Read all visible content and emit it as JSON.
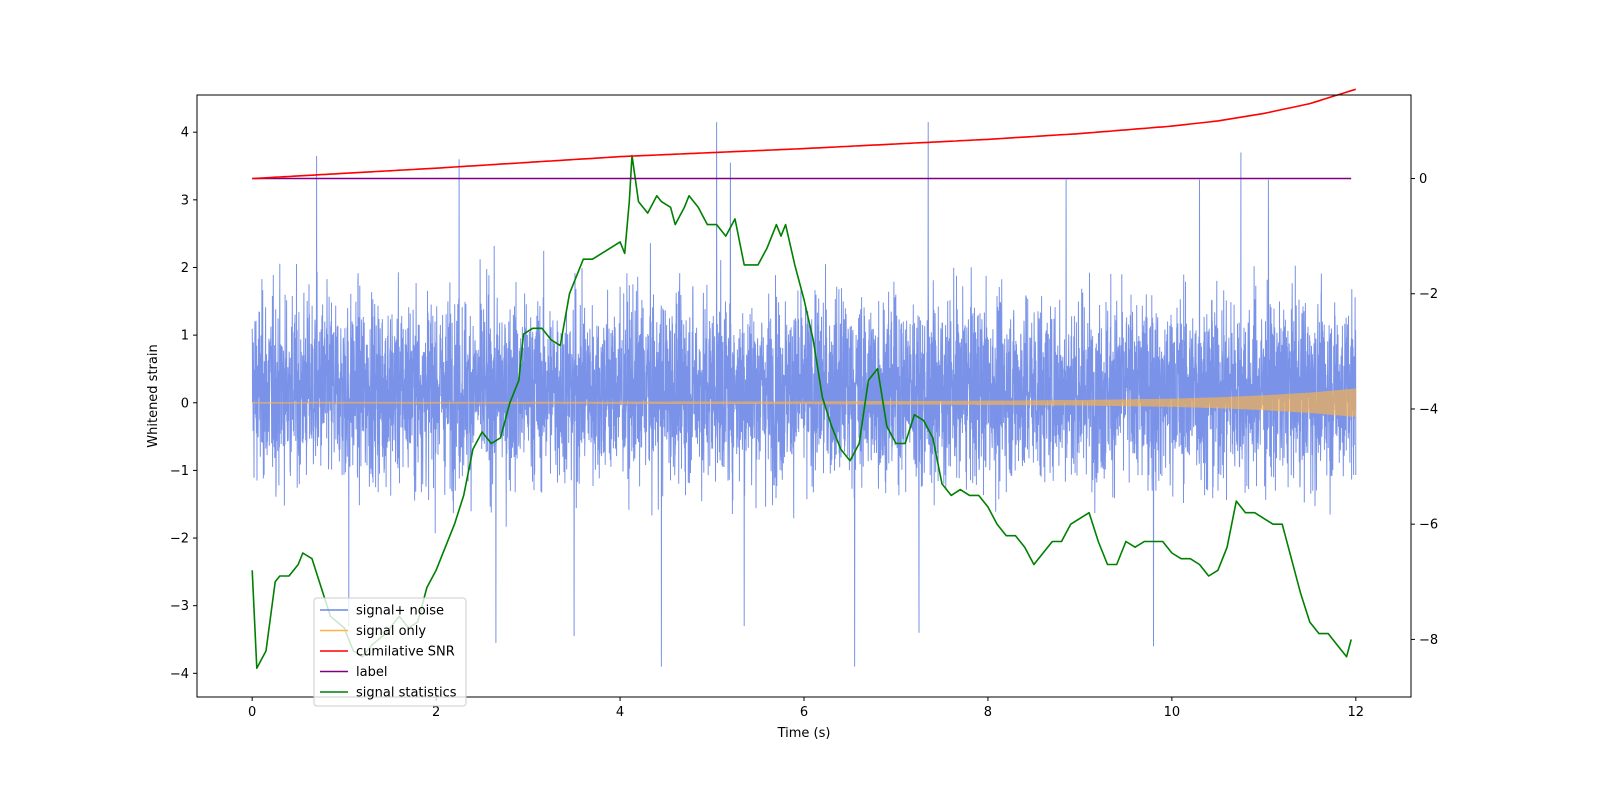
{
  "chart_data": {
    "type": "line",
    "title": "",
    "xlabel": "Time (s)",
    "ylabel": "Whitened strain",
    "xlim": [
      -0.6,
      12.6
    ],
    "ylim": [
      -4.35,
      4.55
    ],
    "y2lim": [
      -9.0,
      1.45
    ],
    "xticks": [
      0,
      2,
      4,
      6,
      8,
      10,
      12
    ],
    "yticks": [
      -4,
      -3,
      -2,
      -1,
      0,
      1,
      2,
      3,
      4
    ],
    "y2ticks": [
      -8,
      -6,
      -4,
      -2,
      0
    ],
    "grid": false,
    "legend_position": "lower-left",
    "series": [
      {
        "name": "signal+ noise",
        "axis": "left",
        "color": "#6b87e6",
        "style": "dense-noise",
        "x_range": [
          0,
          12
        ],
        "amplitude_range": [
          -3.9,
          4.2
        ],
        "typical_range": [
          -2.2,
          2.5
        ],
        "spikes": [
          {
            "x": 0.7,
            "y": 3.65
          },
          {
            "x": 2.25,
            "y": 3.6
          },
          {
            "x": 5.05,
            "y": 4.15
          },
          {
            "x": 5.2,
            "y": 3.55
          },
          {
            "x": 7.35,
            "y": 4.15
          },
          {
            "x": 8.85,
            "y": 3.3
          },
          {
            "x": 10.3,
            "y": 3.3
          },
          {
            "x": 10.75,
            "y": 3.7
          },
          {
            "x": 11.05,
            "y": 3.3
          },
          {
            "x": 4.45,
            "y": -3.9
          },
          {
            "x": 6.55,
            "y": -3.9
          },
          {
            "x": 3.5,
            "y": -3.45
          },
          {
            "x": 1.05,
            "y": -3.3
          },
          {
            "x": 2.65,
            "y": -3.55
          },
          {
            "x": 9.8,
            "y": -3.6
          },
          {
            "x": 7.25,
            "y": -3.4
          },
          {
            "x": 5.35,
            "y": -3.3
          }
        ]
      },
      {
        "name": "signal only",
        "axis": "left",
        "color": "#ffb347",
        "style": "chirp",
        "x_range": [
          0,
          12
        ],
        "envelope_x": [
          0,
          2,
          4,
          6,
          8,
          9,
          10,
          10.5,
          11,
          11.5,
          12
        ],
        "envelope": [
          0.01,
          0.012,
          0.015,
          0.02,
          0.03,
          0.04,
          0.06,
          0.08,
          0.11,
          0.15,
          0.21
        ]
      },
      {
        "name": "cumilative SNR",
        "axis": "right",
        "color": "#ff0000",
        "x": [
          0,
          2,
          4,
          6,
          7,
          8,
          9,
          10,
          10.5,
          11,
          11.5,
          12
        ],
        "y": [
          0.0,
          0.18,
          0.38,
          0.52,
          0.6,
          0.68,
          0.78,
          0.91,
          1.0,
          1.13,
          1.3,
          1.55
        ]
      },
      {
        "name": "label",
        "axis": "right",
        "color": "#800080",
        "x": [
          0,
          11.95
        ],
        "y": [
          0,
          0
        ]
      },
      {
        "name": "signal statistics",
        "axis": "right",
        "color": "#008000",
        "x": [
          0,
          0.05,
          0.15,
          0.25,
          0.3,
          0.4,
          0.5,
          0.55,
          0.65,
          0.75,
          0.85,
          1.0,
          1.1,
          1.2,
          1.3,
          1.45,
          1.6,
          1.7,
          1.8,
          1.9,
          2.0,
          2.1,
          2.2,
          2.3,
          2.4,
          2.5,
          2.6,
          2.7,
          2.8,
          2.9,
          2.95,
          3.05,
          3.15,
          3.25,
          3.35,
          3.45,
          3.6,
          3.7,
          3.8,
          3.9,
          4.0,
          4.05,
          4.1,
          4.13,
          4.2,
          4.3,
          4.4,
          4.45,
          4.55,
          4.6,
          4.7,
          4.75,
          4.85,
          4.95,
          5.05,
          5.15,
          5.25,
          5.35,
          5.5,
          5.6,
          5.7,
          5.75,
          5.8,
          5.9,
          6.0,
          6.1,
          6.2,
          6.3,
          6.4,
          6.5,
          6.6,
          6.7,
          6.8,
          6.9,
          7.0,
          7.1,
          7.2,
          7.3,
          7.4,
          7.5,
          7.6,
          7.7,
          7.8,
          7.9,
          8.0,
          8.1,
          8.2,
          8.3,
          8.4,
          8.5,
          8.6,
          8.7,
          8.8,
          8.9,
          9.0,
          9.1,
          9.2,
          9.3,
          9.4,
          9.5,
          9.6,
          9.7,
          9.8,
          9.9,
          10.0,
          10.1,
          10.2,
          10.3,
          10.4,
          10.5,
          10.6,
          10.7,
          10.8,
          10.9,
          11.0,
          11.1,
          11.2,
          11.3,
          11.4,
          11.5,
          11.6,
          11.7,
          11.8,
          11.9,
          11.95
        ],
        "y": [
          -6.8,
          -8.5,
          -8.2,
          -7.0,
          -6.9,
          -6.9,
          -6.7,
          -6.5,
          -6.6,
          -7.1,
          -7.6,
          -7.8,
          -8.2,
          -8.3,
          -8.1,
          -7.9,
          -7.6,
          -7.8,
          -7.7,
          -7.1,
          -6.8,
          -6.4,
          -6.0,
          -5.5,
          -4.7,
          -4.4,
          -4.6,
          -4.5,
          -3.9,
          -3.5,
          -2.7,
          -2.6,
          -2.6,
          -2.8,
          -2.9,
          -2.0,
          -1.4,
          -1.4,
          -1.3,
          -1.2,
          -1.1,
          -1.3,
          -0.4,
          0.4,
          -0.4,
          -0.6,
          -0.3,
          -0.4,
          -0.5,
          -0.8,
          -0.5,
          -0.3,
          -0.5,
          -0.8,
          -0.8,
          -1.0,
          -0.7,
          -1.5,
          -1.5,
          -1.2,
          -0.8,
          -1.0,
          -0.8,
          -1.5,
          -2.1,
          -2.8,
          -3.8,
          -4.3,
          -4.7,
          -4.9,
          -4.6,
          -3.5,
          -3.3,
          -4.3,
          -4.6,
          -4.6,
          -4.1,
          -4.2,
          -4.5,
          -5.3,
          -5.5,
          -5.4,
          -5.5,
          -5.5,
          -5.7,
          -6.0,
          -6.2,
          -6.2,
          -6.4,
          -6.7,
          -6.5,
          -6.3,
          -6.3,
          -6.0,
          -5.9,
          -5.8,
          -6.3,
          -6.7,
          -6.7,
          -6.3,
          -6.4,
          -6.3,
          -6.3,
          -6.3,
          -6.5,
          -6.6,
          -6.6,
          -6.7,
          -6.9,
          -6.8,
          -6.4,
          -5.6,
          -5.8,
          -5.8,
          -5.9,
          -6.0,
          -6.0,
          -6.6,
          -7.2,
          -7.7,
          -7.9,
          -7.9,
          -8.1,
          -8.3,
          -8.0
        ]
      }
    ]
  }
}
